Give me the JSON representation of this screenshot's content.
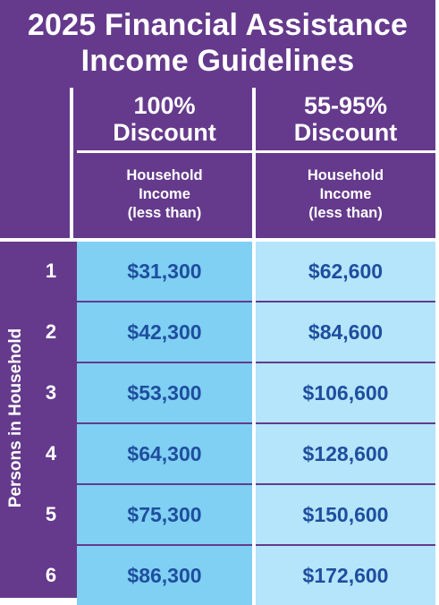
{
  "title": {
    "line1": "2025 Financial Assistance",
    "line2": "Income Guidelines"
  },
  "columns": [
    {
      "heading_line1": "100%",
      "heading_line2": "Discount",
      "sub_line1": "Household",
      "sub_line2": "Income",
      "sub_line3": "(less than)"
    },
    {
      "heading_line1": "55-95%",
      "heading_line2": "Discount",
      "sub_line1": "Household",
      "sub_line2": "Income",
      "sub_line3": "(less than)"
    }
  ],
  "side_label": "Persons in Household",
  "rows": [
    {
      "persons": "1",
      "full_discount_income": "$31,300",
      "partial_discount_income": "$62,600"
    },
    {
      "persons": "2",
      "full_discount_income": "$42,300",
      "partial_discount_income": "$84,600"
    },
    {
      "persons": "3",
      "full_discount_income": "$53,300",
      "partial_discount_income": "$106,600"
    },
    {
      "persons": "4",
      "full_discount_income": "$64,300",
      "partial_discount_income": "$128,600"
    },
    {
      "persons": "5",
      "full_discount_income": "$75,300",
      "partial_discount_income": "$150,600"
    },
    {
      "persons": "6",
      "full_discount_income": "$86,300",
      "partial_discount_income": "$172,600"
    }
  ],
  "colors": {
    "background_purple": "#653a8c",
    "column1_fill": "#7fd0f3",
    "column2_fill": "#b5e5fb",
    "value_text": "#1f4e9e",
    "lines": "#ffffff"
  }
}
